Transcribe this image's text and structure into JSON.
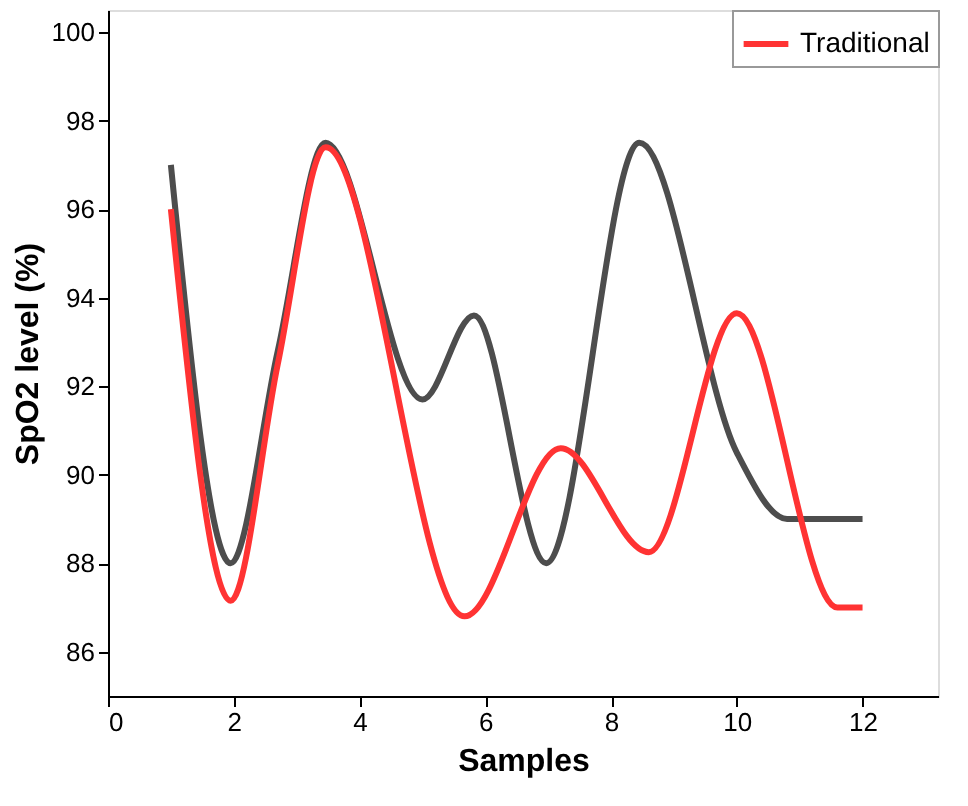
{
  "chart_data": {
    "type": "line",
    "xlabel": "Samples",
    "ylabel": "SpO2 level (%)",
    "xlim": [
      0,
      13.2
    ],
    "xticks": [
      0,
      2,
      4,
      6,
      8,
      10,
      12
    ],
    "ylim": [
      85,
      100.5
    ],
    "yticks": [
      86,
      88,
      90,
      92,
      94,
      96,
      98,
      100
    ],
    "grid": false,
    "legend": "top right",
    "marker": "none",
    "line_style": "solid",
    "series": [
      {
        "color": "#4d4d4d",
        "x": [
          1,
          1.95,
          2.7,
          3.46,
          5.0,
          5.82,
          6.97,
          8.45,
          10.0,
          10.8,
          12
        ],
        "values": [
          97.0,
          88.0,
          92.8,
          97.5,
          91.7,
          93.6,
          88.0,
          97.5,
          90.5,
          89.0,
          89.0
        ]
      },
      {
        "name": "Traditional",
        "color": "#ff3333",
        "x": [
          1,
          1.95,
          2.7,
          3.46,
          5.67,
          7.2,
          8.6,
          10.0,
          11.6,
          12
        ],
        "values": [
          96.0,
          87.15,
          92.5,
          97.4,
          86.8,
          90.6,
          88.25,
          93.65,
          87.0,
          87.0
        ]
      }
    ]
  }
}
